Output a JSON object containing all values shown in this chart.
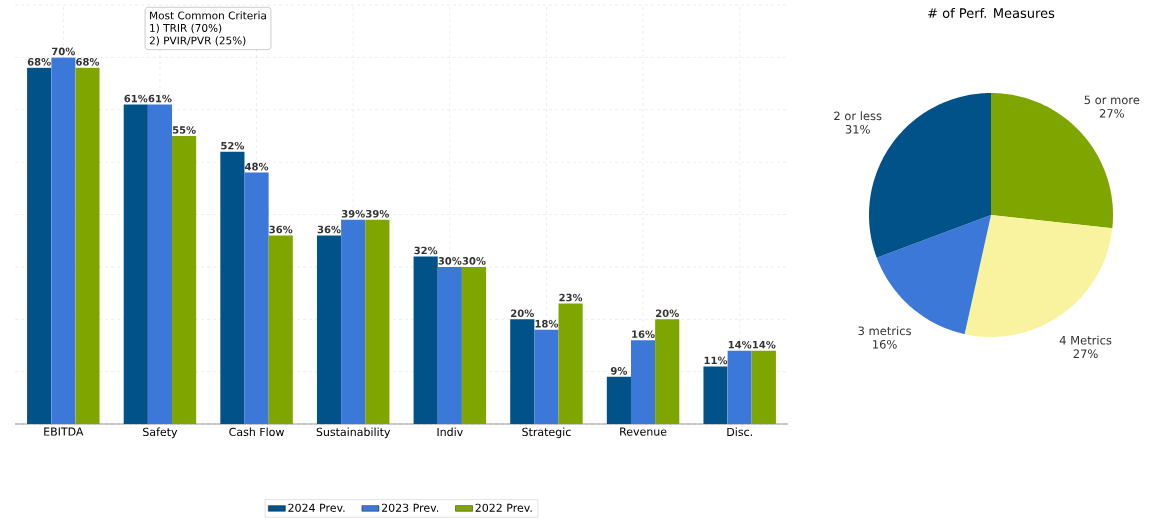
{
  "chart_data": [
    {
      "type": "bar",
      "categories": [
        "EBITDA",
        "Safety",
        "Cash Flow",
        "Sustainability",
        "Indiv",
        "Strategic",
        "Revenue",
        "Disc."
      ],
      "series": [
        {
          "name": "2024 Prev.",
          "color": "#005288",
          "values": [
            68,
            61,
            52,
            36,
            32,
            20,
            9,
            11
          ],
          "value_labels": [
            "68%",
            "61%",
            "52%",
            "36%",
            "32%",
            "20%",
            "9%",
            "11%"
          ]
        },
        {
          "name": "2023 Prev.",
          "color": "#3b78d8",
          "values": [
            70,
            61,
            48,
            39,
            30,
            18,
            16,
            14
          ],
          "value_labels": [
            "70%",
            "61%",
            "48%",
            "39%",
            "30%",
            "18%",
            "16%",
            "14%"
          ]
        },
        {
          "name": "2022 Prev.",
          "color": "#7fa500",
          "values": [
            68,
            55,
            36,
            39,
            30,
            23,
            20,
            14
          ],
          "value_labels": [
            "68%",
            "55%",
            "36%",
            "39%",
            "30%",
            "23%",
            "20%",
            "14%"
          ]
        }
      ],
      "ylim": [
        0,
        80
      ],
      "yticks": [
        0,
        10,
        20,
        30,
        40,
        50,
        60,
        70,
        80
      ],
      "tick_labels": "x",
      "grid": true,
      "legend": "bottom",
      "annotations": [
        "Most Common Criteria",
        "1) TRIR (70%)",
        "2) PVIR/PVR (25%)"
      ]
    },
    {
      "type": "pie",
      "title": "# of Perf. Measures",
      "categories": [
        "5 or more",
        "4 Metrics",
        "3 metrics",
        "2 or less"
      ],
      "values": [
        27,
        27,
        16,
        31
      ],
      "value_labels": [
        "27%",
        "27%",
        "16%",
        "31%"
      ],
      "colors": [
        "#7fa500",
        "#f9f3a0",
        "#3b78d8",
        "#005288"
      ]
    }
  ]
}
